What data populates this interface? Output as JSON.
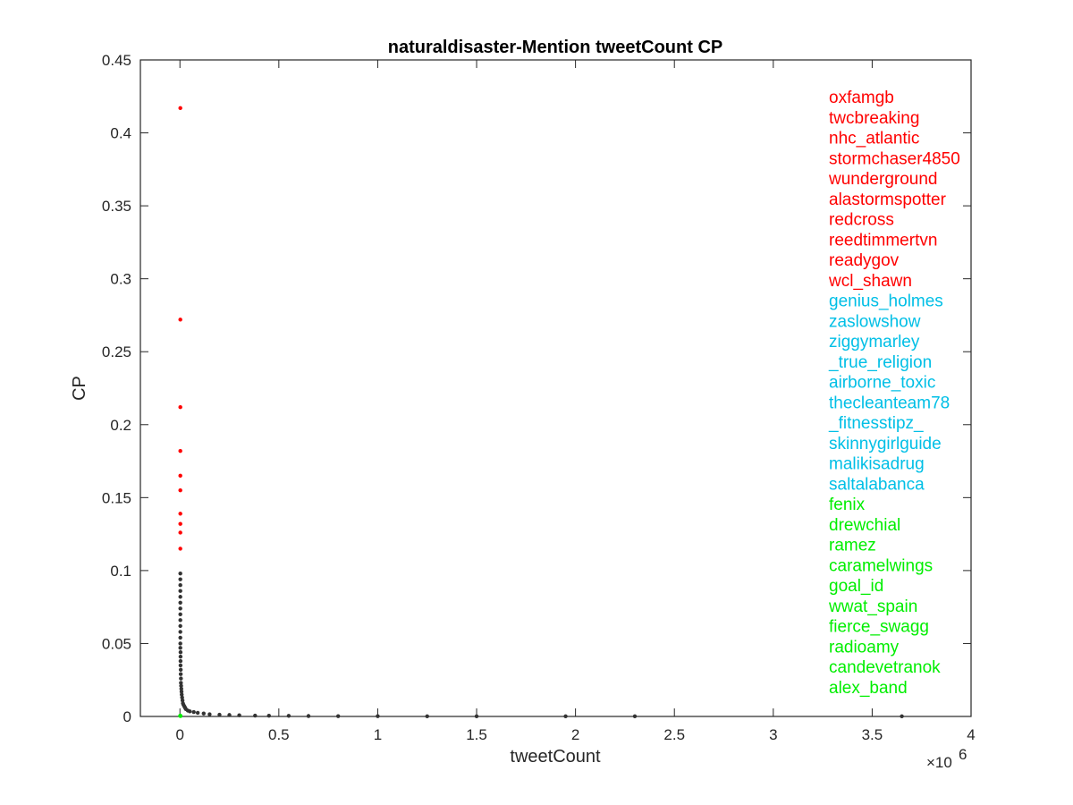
{
  "chart_data": {
    "type": "scatter",
    "title": "naturaldisaster-Mention tweetCount CP",
    "xlabel": "tweetCount",
    "ylabel": "CP",
    "x_exponent_label": "×10",
    "x_exponent_power": "6",
    "x_scale": 1000000,
    "xlim": [
      -200000,
      4000000
    ],
    "ylim": [
      0,
      0.45
    ],
    "grid": false,
    "legend": "none",
    "x_ticks": [
      0,
      500000,
      1000000,
      1500000,
      2000000,
      2500000,
      3000000,
      3500000,
      4000000
    ],
    "x_tick_labels": [
      "0",
      "0.5",
      "1",
      "1.5",
      "2",
      "2.5",
      "3",
      "3.5",
      "4"
    ],
    "y_ticks": [
      0,
      0.05,
      0.1,
      0.15,
      0.2,
      0.25,
      0.3,
      0.35,
      0.4,
      0.45
    ],
    "y_tick_labels": [
      "0",
      "0.05",
      "0.1",
      "0.15",
      "0.2",
      "0.25",
      "0.3",
      "0.35",
      "0.4",
      "0.45"
    ],
    "colors": {
      "top_cp": "#ff0000",
      "top_tweetcount": "#00bfe6",
      "bottom": "#00ee00",
      "others": "#333333",
      "axes": "#262626"
    },
    "series": [
      {
        "group": "top_cp",
        "color": "#ff0000",
        "points": [
          {
            "x": 2000,
            "y": 0.417
          },
          {
            "x": 2000,
            "y": 0.272
          },
          {
            "x": 2000,
            "y": 0.212
          },
          {
            "x": 2000,
            "y": 0.182
          },
          {
            "x": 2000,
            "y": 0.165
          },
          {
            "x": 2000,
            "y": 0.155
          },
          {
            "x": 2000,
            "y": 0.139
          },
          {
            "x": 2000,
            "y": 0.132
          },
          {
            "x": 2000,
            "y": 0.126
          },
          {
            "x": 2000,
            "y": 0.115
          }
        ]
      },
      {
        "group": "others",
        "color": "#333333",
        "points": [
          {
            "x": 2000,
            "y": 0.098
          },
          {
            "x": 2000,
            "y": 0.094
          },
          {
            "x": 2000,
            "y": 0.09
          },
          {
            "x": 2000,
            "y": 0.086
          },
          {
            "x": 2000,
            "y": 0.082
          },
          {
            "x": 2000,
            "y": 0.078
          },
          {
            "x": 2000,
            "y": 0.074
          },
          {
            "x": 2000,
            "y": 0.07
          },
          {
            "x": 2000,
            "y": 0.066
          },
          {
            "x": 2000,
            "y": 0.062
          },
          {
            "x": 2000,
            "y": 0.058
          },
          {
            "x": 2000,
            "y": 0.054
          },
          {
            "x": 2000,
            "y": 0.05
          },
          {
            "x": 2000,
            "y": 0.047
          },
          {
            "x": 3000,
            "y": 0.044
          },
          {
            "x": 3000,
            "y": 0.041
          },
          {
            "x": 3000,
            "y": 0.038
          },
          {
            "x": 3000,
            "y": 0.035
          },
          {
            "x": 4000,
            "y": 0.032
          },
          {
            "x": 4000,
            "y": 0.029
          },
          {
            "x": 5000,
            "y": 0.026
          },
          {
            "x": 5000,
            "y": 0.023
          },
          {
            "x": 6000,
            "y": 0.021
          },
          {
            "x": 7000,
            "y": 0.019
          },
          {
            "x": 8000,
            "y": 0.017
          },
          {
            "x": 9000,
            "y": 0.015
          },
          {
            "x": 11000,
            "y": 0.013
          },
          {
            "x": 13000,
            "y": 0.011
          },
          {
            "x": 15000,
            "y": 0.009
          },
          {
            "x": 18000,
            "y": 0.008
          },
          {
            "x": 22000,
            "y": 0.007
          },
          {
            "x": 26000,
            "y": 0.006
          },
          {
            "x": 30000,
            "y": 0.005
          },
          {
            "x": 40000,
            "y": 0.004
          },
          {
            "x": 50000,
            "y": 0.0035
          },
          {
            "x": 70000,
            "y": 0.003
          },
          {
            "x": 90000,
            "y": 0.0025
          },
          {
            "x": 120000,
            "y": 0.002
          },
          {
            "x": 150000,
            "y": 0.0015
          },
          {
            "x": 200000,
            "y": 0.0012
          },
          {
            "x": 250000,
            "y": 0.001
          },
          {
            "x": 300000,
            "y": 0.0008
          },
          {
            "x": 380000,
            "y": 0.0006
          },
          {
            "x": 450000,
            "y": 0.0005
          },
          {
            "x": 550000,
            "y": 0.0004
          },
          {
            "x": 650000,
            "y": 0.0003
          },
          {
            "x": 800000,
            "y": 0.0002
          },
          {
            "x": 1000000,
            "y": 0.0002
          },
          {
            "x": 1250000,
            "y": 0.0001
          },
          {
            "x": 1500000,
            "y": 0.0001
          },
          {
            "x": 1950000,
            "y": 0.0001
          },
          {
            "x": 2300000,
            "y": 0.0001
          },
          {
            "x": 3650000,
            "y": 0.0001
          }
        ]
      },
      {
        "group": "bottom",
        "color": "#00ee00",
        "points": [
          {
            "x": 1000,
            "y": 0.0004
          },
          {
            "x": 2000,
            "y": 0.0006
          },
          {
            "x": 3000,
            "y": 0.0003
          }
        ]
      }
    ],
    "annotations": [
      {
        "text": "oxfamgb",
        "group": "top_cp"
      },
      {
        "text": "twcbreaking",
        "group": "top_cp"
      },
      {
        "text": "nhc_atlantic",
        "group": "top_cp"
      },
      {
        "text": "stormchaser4850",
        "group": "top_cp"
      },
      {
        "text": "wunderground",
        "group": "top_cp"
      },
      {
        "text": "alastormspotter",
        "group": "top_cp"
      },
      {
        "text": "redcross",
        "group": "top_cp"
      },
      {
        "text": "reedtimmertvn",
        "group": "top_cp"
      },
      {
        "text": "readygov",
        "group": "top_cp"
      },
      {
        "text": "wcl_shawn",
        "group": "top_cp"
      },
      {
        "text": "genius_holmes",
        "group": "top_tweetcount"
      },
      {
        "text": "zaslowshow",
        "group": "top_tweetcount"
      },
      {
        "text": "ziggymarley",
        "group": "top_tweetcount"
      },
      {
        "text": "_true_religion",
        "group": "top_tweetcount"
      },
      {
        "text": "airborne_toxic",
        "group": "top_tweetcount"
      },
      {
        "text": "thecleanteam78",
        "group": "top_tweetcount"
      },
      {
        "text": "_fitnesstipz_",
        "group": "top_tweetcount"
      },
      {
        "text": "skinnygirlguide",
        "group": "top_tweetcount"
      },
      {
        "text": "malikisadrug",
        "group": "top_tweetcount"
      },
      {
        "text": "saltalabanca",
        "group": "top_tweetcount"
      },
      {
        "text": "fenix",
        "group": "bottom"
      },
      {
        "text": "drewchial",
        "group": "bottom"
      },
      {
        "text": "ramez",
        "group": "bottom"
      },
      {
        "text": "caramelwings",
        "group": "bottom"
      },
      {
        "text": "goal_id",
        "group": "bottom"
      },
      {
        "text": "wwat_spain",
        "group": "bottom"
      },
      {
        "text": "fierce_swagg",
        "group": "bottom"
      },
      {
        "text": "radioamy",
        "group": "bottom"
      },
      {
        "text": "candevetranok",
        "group": "bottom"
      },
      {
        "text": "alex_band",
        "group": "bottom"
      }
    ]
  }
}
